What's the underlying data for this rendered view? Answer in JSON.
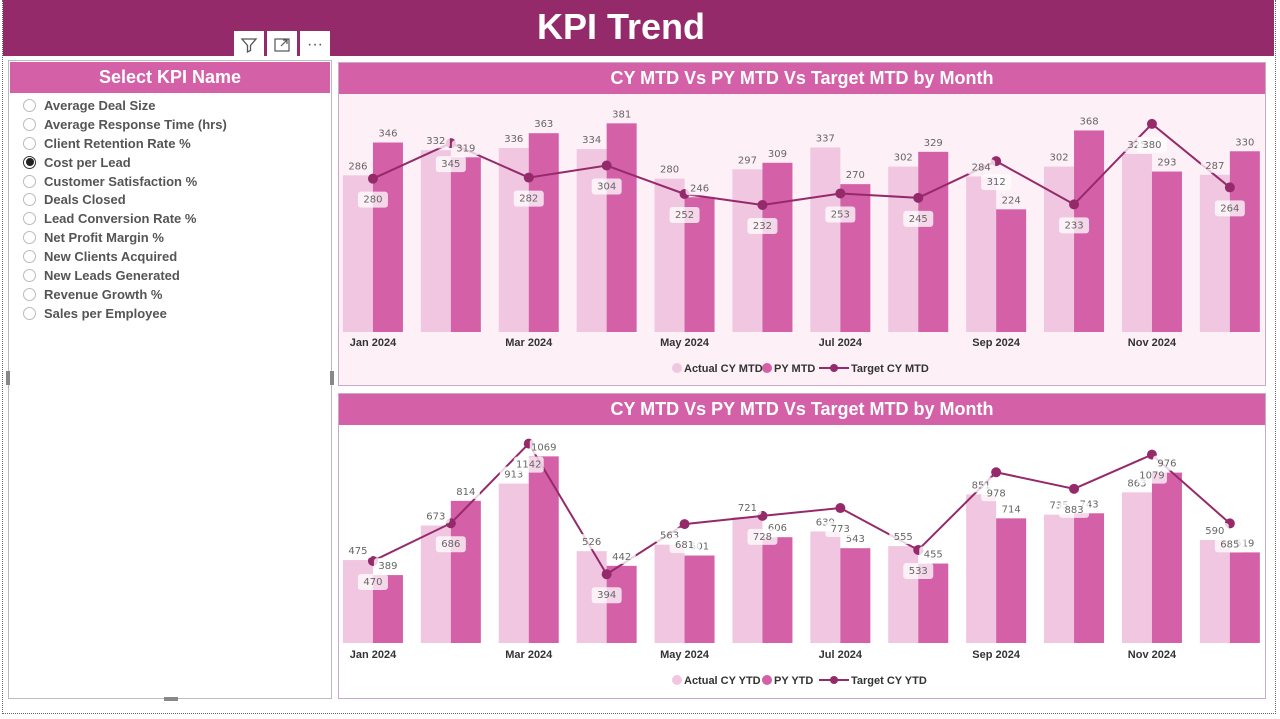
{
  "header": {
    "title": "KPI Trend"
  },
  "visual_tools": {
    "filter_icon": "filter-icon",
    "focus_icon": "focus-mode-icon",
    "more_icon": "more-options-icon"
  },
  "slicer": {
    "title": "Select KPI Name",
    "selected": "Cost per Lead",
    "items": [
      "Average Deal Size",
      "Average Response Time (hrs)",
      "Client Retention Rate %",
      "Cost per Lead",
      "Customer Satisfaction %",
      "Deals Closed",
      "Lead Conversion Rate %",
      "Net Profit Margin %",
      "New Clients Acquired",
      "New Leads Generated",
      "Revenue Growth %",
      "Sales per Employee"
    ]
  },
  "colors": {
    "header": "#952a6b",
    "accent": "#d460a8",
    "actual": "#f0c6e0",
    "py": "#d460a8",
    "target": "#952a6b"
  },
  "chart_data": [
    {
      "type": "bar+line",
      "title": "CY MTD Vs PY MTD Vs Target MTD by Month",
      "categories": [
        "Jan 2024",
        "Feb 2024",
        "Mar 2024",
        "Apr 2024",
        "May 2024",
        "Jun 2024",
        "Jul 2024",
        "Aug 2024",
        "Sep 2024",
        "Oct 2024",
        "Nov 2024",
        "Dec 2024"
      ],
      "tick_labels": [
        "Jan 2024",
        "",
        "Mar 2024",
        "",
        "May 2024",
        "",
        "Jul 2024",
        "",
        "Sep 2024",
        "",
        "Nov 2024",
        ""
      ],
      "ylim": [
        0,
        420
      ],
      "legend_position": "bottom-center",
      "series": [
        {
          "name": "Actual CY MTD",
          "kind": "bar",
          "values": [
            286,
            332,
            336,
            334,
            280,
            297,
            337,
            302,
            284,
            302,
            325,
            287
          ]
        },
        {
          "name": "PY MTD",
          "kind": "bar",
          "values": [
            346,
            319,
            363,
            381,
            246,
            309,
            270,
            329,
            224,
            368,
            293,
            330
          ]
        },
        {
          "name": "Target CY MTD",
          "kind": "line",
          "values": [
            280,
            345,
            282,
            304,
            252,
            232,
            253,
            245,
            312,
            233,
            380,
            264
          ]
        }
      ]
    },
    {
      "type": "bar+line",
      "title": "CY MTD Vs PY MTD Vs Target MTD by Month",
      "categories": [
        "Jan 2024",
        "Feb 2024",
        "Mar 2024",
        "Apr 2024",
        "May 2024",
        "Jun 2024",
        "Jul 2024",
        "Aug 2024",
        "Sep 2024",
        "Oct 2024",
        "Nov 2024",
        "Dec 2024"
      ],
      "tick_labels": [
        "Jan 2024",
        "",
        "Mar 2024",
        "",
        "May 2024",
        "",
        "Jul 2024",
        "",
        "Sep 2024",
        "",
        "Nov 2024",
        ""
      ],
      "ylim": [
        0,
        1220
      ],
      "legend_position": "bottom-center",
      "series": [
        {
          "name": "Actual CY YTD",
          "kind": "bar",
          "values": [
            475,
            673,
            913,
            526,
            563,
            721,
            639,
            555,
            851,
            735,
            863,
            590
          ]
        },
        {
          "name": "PY YTD",
          "kind": "bar",
          "values": [
            389,
            814,
            1069,
            442,
            501,
            606,
            543,
            455,
            714,
            743,
            976,
            519
          ]
        },
        {
          "name": "Target CY YTD",
          "kind": "line",
          "values": [
            470,
            686,
            1142,
            394,
            681,
            728,
            773,
            533,
            978,
            883,
            1079,
            685
          ]
        }
      ]
    }
  ]
}
